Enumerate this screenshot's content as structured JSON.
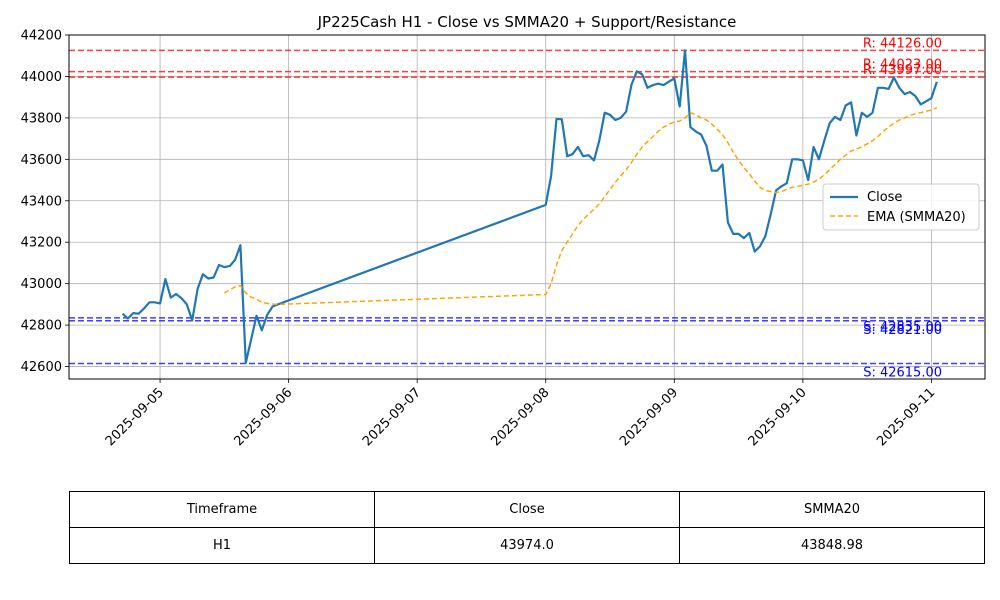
{
  "chart_data": {
    "type": "line",
    "title": "JP225Cash H1 - Close vs SMMA20 + Support/Resistance",
    "xlabel": "",
    "ylabel": "",
    "x_range": [
      "2025-09-04T07:00",
      "2025-09-11T10:00"
    ],
    "ylim": [
      42540,
      44200
    ],
    "x_tick_labels": [
      "2025-09-05",
      "2025-09-06",
      "2025-09-07",
      "2025-09-08",
      "2025-09-09",
      "2025-09-10",
      "2025-09-11"
    ],
    "y_ticks": [
      42600,
      42800,
      43000,
      43200,
      43400,
      43600,
      43800,
      44000,
      44200
    ],
    "grid": true,
    "legend": {
      "placement": "center-right",
      "entries": [
        "Close",
        "EMA (SMMA20)"
      ]
    },
    "colors": {
      "close": "#1f77b4",
      "smma": "#ffa500",
      "resistance": "#ff0000",
      "support": "#0000ff"
    },
    "series": [
      {
        "name": "Close",
        "style": "solid",
        "points": [
          [
            "2025-09-04T17:00",
            42855
          ],
          [
            "2025-09-04T18:00",
            42832
          ],
          [
            "2025-09-04T19:00",
            42858
          ],
          [
            "2025-09-04T20:00",
            42855
          ],
          [
            "2025-09-04T21:00",
            42880
          ],
          [
            "2025-09-04T22:00",
            42910
          ],
          [
            "2025-09-04T23:00",
            42910
          ],
          [
            "2025-09-05T00:00",
            42905
          ],
          [
            "2025-09-05T01:00",
            43022
          ],
          [
            "2025-09-05T02:00",
            42933
          ],
          [
            "2025-09-05T03:00",
            42950
          ],
          [
            "2025-09-05T04:00",
            42930
          ],
          [
            "2025-09-05T05:00",
            42900
          ],
          [
            "2025-09-05T06:00",
            42823
          ],
          [
            "2025-09-05T07:00",
            42975
          ],
          [
            "2025-09-05T08:00",
            43045
          ],
          [
            "2025-09-05T09:00",
            43025
          ],
          [
            "2025-09-05T10:00",
            43030
          ],
          [
            "2025-09-05T11:00",
            43090
          ],
          [
            "2025-09-05T12:00",
            43080
          ],
          [
            "2025-09-05T13:00",
            43085
          ],
          [
            "2025-09-05T14:00",
            43115
          ],
          [
            "2025-09-05T15:00",
            43185
          ],
          [
            "2025-09-05T16:00",
            42618
          ],
          [
            "2025-09-05T17:00",
            42730
          ],
          [
            "2025-09-05T18:00",
            42845
          ],
          [
            "2025-09-05T19:00",
            42775
          ],
          [
            "2025-09-05T20:00",
            42850
          ],
          [
            "2025-09-05T21:00",
            42890
          ],
          [
            "2025-09-05T22:00",
            42900
          ],
          [
            "2025-09-08T00:00",
            43380
          ],
          [
            "2025-09-08T01:00",
            43520
          ],
          [
            "2025-09-08T02:00",
            43795
          ],
          [
            "2025-09-08T03:00",
            43793
          ],
          [
            "2025-09-08T04:00",
            43615
          ],
          [
            "2025-09-08T05:00",
            43625
          ],
          [
            "2025-09-08T06:00",
            43660
          ],
          [
            "2025-09-08T07:00",
            43615
          ],
          [
            "2025-09-08T08:00",
            43620
          ],
          [
            "2025-09-08T09:00",
            43595
          ],
          [
            "2025-09-08T10:00",
            43690
          ],
          [
            "2025-09-08T11:00",
            43825
          ],
          [
            "2025-09-08T12:00",
            43815
          ],
          [
            "2025-09-08T13:00",
            43790
          ],
          [
            "2025-09-08T14:00",
            43800
          ],
          [
            "2025-09-08T15:00",
            43830
          ],
          [
            "2025-09-08T16:00",
            43960
          ],
          [
            "2025-09-08T17:00",
            44025
          ],
          [
            "2025-09-08T18:00",
            44010
          ],
          [
            "2025-09-08T19:00",
            43945
          ],
          [
            "2025-09-08T20:00",
            43958
          ],
          [
            "2025-09-08T21:00",
            43965
          ],
          [
            "2025-09-08T22:00",
            43958
          ],
          [
            "2025-09-08T23:00",
            43975
          ],
          [
            "2025-09-09T00:00",
            43990
          ],
          [
            "2025-09-09T01:00",
            43855
          ],
          [
            "2025-09-09T02:00",
            44126
          ],
          [
            "2025-09-09T03:00",
            43755
          ],
          [
            "2025-09-09T04:00",
            43735
          ],
          [
            "2025-09-09T05:00",
            43720
          ],
          [
            "2025-09-09T06:00",
            43665
          ],
          [
            "2025-09-09T07:00",
            43545
          ],
          [
            "2025-09-09T08:00",
            43545
          ],
          [
            "2025-09-09T09:00",
            43575
          ],
          [
            "2025-09-09T10:00",
            43295
          ],
          [
            "2025-09-09T11:00",
            43240
          ],
          [
            "2025-09-09T12:00",
            43240
          ],
          [
            "2025-09-09T13:00",
            43220
          ],
          [
            "2025-09-09T14:00",
            43245
          ],
          [
            "2025-09-09T15:00",
            43155
          ],
          [
            "2025-09-09T16:00",
            43180
          ],
          [
            "2025-09-09T17:00",
            43230
          ],
          [
            "2025-09-09T18:00",
            43335
          ],
          [
            "2025-09-09T19:00",
            43450
          ],
          [
            "2025-09-09T20:00",
            43470
          ],
          [
            "2025-09-09T21:00",
            43485
          ],
          [
            "2025-09-09T22:00",
            43600
          ],
          [
            "2025-09-09T23:00",
            43600
          ],
          [
            "2025-09-10T00:00",
            43595
          ],
          [
            "2025-09-10T01:00",
            43500
          ],
          [
            "2025-09-10T02:00",
            43660
          ],
          [
            "2025-09-10T03:00",
            43600
          ],
          [
            "2025-09-10T04:00",
            43690
          ],
          [
            "2025-09-10T05:00",
            43775
          ],
          [
            "2025-09-10T06:00",
            43805
          ],
          [
            "2025-09-10T07:00",
            43790
          ],
          [
            "2025-09-10T08:00",
            43860
          ],
          [
            "2025-09-10T09:00",
            43875
          ],
          [
            "2025-09-10T10:00",
            43715
          ],
          [
            "2025-09-10T11:00",
            43825
          ],
          [
            "2025-09-10T12:00",
            43805
          ],
          [
            "2025-09-10T13:00",
            43825
          ],
          [
            "2025-09-10T14:00",
            43945
          ],
          [
            "2025-09-10T15:00",
            43945
          ],
          [
            "2025-09-10T16:00",
            43940
          ],
          [
            "2025-09-10T17:00",
            43995
          ],
          [
            "2025-09-10T18:00",
            43945
          ],
          [
            "2025-09-10T19:00",
            43915
          ],
          [
            "2025-09-10T20:00",
            43925
          ],
          [
            "2025-09-10T21:00",
            43905
          ],
          [
            "2025-09-10T22:00",
            43865
          ],
          [
            "2025-09-10T23:00",
            43880
          ],
          [
            "2025-09-11T00:00",
            43895
          ],
          [
            "2025-09-11T01:00",
            43974
          ]
        ]
      },
      {
        "name": "EMA (SMMA20)",
        "style": "dashed",
        "points": [
          [
            "2025-09-05T12:00",
            42955
          ],
          [
            "2025-09-05T13:00",
            42970
          ],
          [
            "2025-09-05T14:00",
            42985
          ],
          [
            "2025-09-05T15:00",
            42990
          ],
          [
            "2025-09-05T16:00",
            42955
          ],
          [
            "2025-09-05T17:00",
            42935
          ],
          [
            "2025-09-05T18:00",
            42925
          ],
          [
            "2025-09-05T19:00",
            42910
          ],
          [
            "2025-09-05T20:00",
            42905
          ],
          [
            "2025-09-05T21:00",
            42902
          ],
          [
            "2025-09-05T22:00",
            42900
          ],
          [
            "2025-09-08T00:00",
            42948
          ],
          [
            "2025-09-08T01:00",
            43000
          ],
          [
            "2025-09-08T02:00",
            43090
          ],
          [
            "2025-09-08T03:00",
            43160
          ],
          [
            "2025-09-08T04:00",
            43200
          ],
          [
            "2025-09-08T05:00",
            43240
          ],
          [
            "2025-09-08T06:00",
            43280
          ],
          [
            "2025-09-08T07:00",
            43310
          ],
          [
            "2025-09-08T08:00",
            43335
          ],
          [
            "2025-09-08T09:00",
            43360
          ],
          [
            "2025-09-08T10:00",
            43385
          ],
          [
            "2025-09-08T11:00",
            43420
          ],
          [
            "2025-09-08T12:00",
            43455
          ],
          [
            "2025-09-08T13:00",
            43490
          ],
          [
            "2025-09-08T14:00",
            43520
          ],
          [
            "2025-09-08T15:00",
            43550
          ],
          [
            "2025-09-08T16:00",
            43585
          ],
          [
            "2025-09-08T17:00",
            43625
          ],
          [
            "2025-09-08T18:00",
            43660
          ],
          [
            "2025-09-08T19:00",
            43685
          ],
          [
            "2025-09-08T20:00",
            43710
          ],
          [
            "2025-09-08T21:00",
            43735
          ],
          [
            "2025-09-08T22:00",
            43755
          ],
          [
            "2025-09-08T23:00",
            43770
          ],
          [
            "2025-09-09T00:00",
            43780
          ],
          [
            "2025-09-09T01:00",
            43785
          ],
          [
            "2025-09-09T02:00",
            43800
          ],
          [
            "2025-09-09T03:00",
            43825
          ],
          [
            "2025-09-09T04:00",
            43815
          ],
          [
            "2025-09-09T05:00",
            43800
          ],
          [
            "2025-09-09T06:00",
            43790
          ],
          [
            "2025-09-09T07:00",
            43770
          ],
          [
            "2025-09-09T08:00",
            43745
          ],
          [
            "2025-09-09T09:00",
            43720
          ],
          [
            "2025-09-09T10:00",
            43680
          ],
          [
            "2025-09-09T11:00",
            43635
          ],
          [
            "2025-09-09T12:00",
            43595
          ],
          [
            "2025-09-09T13:00",
            43560
          ],
          [
            "2025-09-09T14:00",
            43530
          ],
          [
            "2025-09-09T15:00",
            43495
          ],
          [
            "2025-09-09T16:00",
            43465
          ],
          [
            "2025-09-09T17:00",
            43450
          ],
          [
            "2025-09-09T18:00",
            43445
          ],
          [
            "2025-09-09T19:00",
            43440
          ],
          [
            "2025-09-09T20:00",
            43445
          ],
          [
            "2025-09-09T21:00",
            43455
          ],
          [
            "2025-09-09T22:00",
            43465
          ],
          [
            "2025-09-09T23:00",
            43470
          ],
          [
            "2025-09-10T00:00",
            43475
          ],
          [
            "2025-09-10T01:00",
            43480
          ],
          [
            "2025-09-10T02:00",
            43490
          ],
          [
            "2025-09-10T03:00",
            43505
          ],
          [
            "2025-09-10T04:00",
            43525
          ],
          [
            "2025-09-10T05:00",
            43550
          ],
          [
            "2025-09-10T06:00",
            43575
          ],
          [
            "2025-09-10T07:00",
            43600
          ],
          [
            "2025-09-10T08:00",
            43620
          ],
          [
            "2025-09-10T09:00",
            43640
          ],
          [
            "2025-09-10T10:00",
            43650
          ],
          [
            "2025-09-10T11:00",
            43660
          ],
          [
            "2025-09-10T12:00",
            43675
          ],
          [
            "2025-09-10T13:00",
            43690
          ],
          [
            "2025-09-10T14:00",
            43710
          ],
          [
            "2025-09-10T15:00",
            43735
          ],
          [
            "2025-09-10T16:00",
            43755
          ],
          [
            "2025-09-10T17:00",
            43775
          ],
          [
            "2025-09-10T18:00",
            43790
          ],
          [
            "2025-09-10T19:00",
            43800
          ],
          [
            "2025-09-10T20:00",
            43812
          ],
          [
            "2025-09-10T21:00",
            43820
          ],
          [
            "2025-09-10T22:00",
            43825
          ],
          [
            "2025-09-10T23:00",
            43832
          ],
          [
            "2025-09-11T00:00",
            43838
          ],
          [
            "2025-09-11T01:00",
            43849
          ]
        ]
      }
    ],
    "resistance_levels": [
      {
        "value": 44126.0,
        "label": "R: 44126.00"
      },
      {
        "value": 44023.0,
        "label": "R: 44023.00"
      },
      {
        "value": 43997.0,
        "label": "R: 43997.00"
      }
    ],
    "support_levels": [
      {
        "value": 42835.0,
        "label": "S: 42835.00"
      },
      {
        "value": 42821.0,
        "label": "S: 42821.00"
      },
      {
        "value": 42615.0,
        "label": "S: 42615.00"
      }
    ]
  },
  "table": {
    "headers": [
      "Timeframe",
      "Close",
      "SMMA20"
    ],
    "row": [
      "H1",
      "43974.0",
      "43848.98"
    ]
  }
}
